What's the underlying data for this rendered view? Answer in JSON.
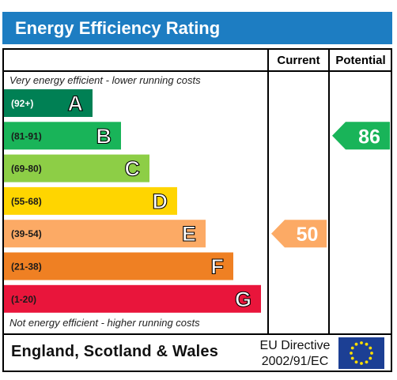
{
  "title": "Energy Efficiency Rating",
  "columns": {
    "current": "Current",
    "potential": "Potential"
  },
  "notes": {
    "top": "Very energy efficient - lower running costs",
    "bottom": "Not energy efficient - higher running costs"
  },
  "footer": {
    "region": "England, Scotland & Wales",
    "directive_line1": "EU Directive",
    "directive_line2": "2002/91/EC"
  },
  "chart_data": {
    "type": "bar",
    "categories": [
      "A",
      "B",
      "C",
      "D",
      "E",
      "F",
      "G"
    ],
    "ranges": [
      "(92+)",
      "(81-91)",
      "(69-80)",
      "(55-68)",
      "(39-54)",
      "(21-38)",
      "(1-20)"
    ],
    "colors": [
      "#008054",
      "#19b459",
      "#8dce46",
      "#ffd500",
      "#fcaa65",
      "#ef8023",
      "#e9153b"
    ],
    "current": {
      "value": 50,
      "band": "E",
      "color": "#fcaa65"
    },
    "potential": {
      "value": 86,
      "band": "B",
      "color": "#19b459"
    }
  }
}
